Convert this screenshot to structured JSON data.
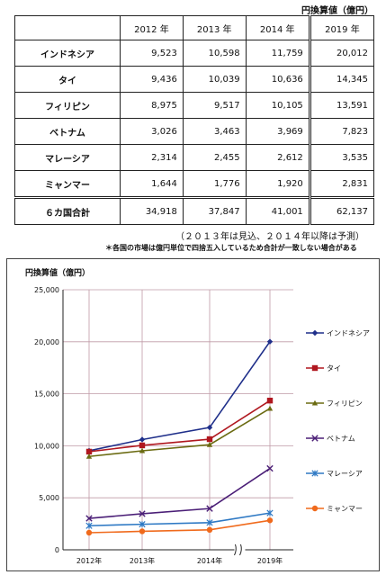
{
  "table": {
    "unit_label": "円換算値（億円）",
    "headers": [
      "",
      "2012 年",
      "2013 年",
      "2014 年",
      "2019 年"
    ],
    "rows": [
      {
        "country": "インドネシア",
        "values": [
          "9,523",
          "10,598",
          "11,759",
          "20,012"
        ]
      },
      {
        "country": "タイ",
        "values": [
          "9,436",
          "10,039",
          "10,636",
          "14,345"
        ]
      },
      {
        "country": "フィリピン",
        "values": [
          "8,975",
          "9,517",
          "10,105",
          "13,591"
        ]
      },
      {
        "country": "ベトナム",
        "values": [
          "3,026",
          "3,463",
          "3,969",
          "7,823"
        ]
      },
      {
        "country": "マレーシア",
        "values": [
          "2,314",
          "2,455",
          "2,612",
          "3,535"
        ]
      },
      {
        "country": "ミャンマー",
        "values": [
          "1,644",
          "1,776",
          "1,920",
          "2,831"
        ]
      }
    ],
    "total": {
      "country": "６カ国合計",
      "values": [
        "34,918",
        "37,847",
        "41,001",
        "62,137"
      ]
    }
  },
  "notes": {
    "forecast": "（２０１３年は見込、２０１４年以降は予測）",
    "rounding": "＊各国の市場は億円単位で四捨五入しているため合計が一致しない場合がある"
  },
  "chart_data": {
    "type": "line",
    "title": "円換算値（億円）",
    "xlabel": "",
    "ylabel": "",
    "categories": [
      "2012年",
      "2013年",
      "2014年",
      "2019年"
    ],
    "ylim": [
      0,
      25000
    ],
    "yticks": [
      0,
      5000,
      10000,
      15000,
      20000,
      25000
    ],
    "ytick_labels": [
      "0",
      "5,000",
      "10,000",
      "15,000",
      "20,000",
      "25,000"
    ],
    "grid": true,
    "legend_position": "right",
    "axis_break_between": [
      "2014年",
      "2019年"
    ],
    "series": [
      {
        "name": "インドネシア",
        "color": "#1f2f8a",
        "marker": "diamond",
        "values": [
          9523,
          10598,
          11759,
          20012
        ]
      },
      {
        "name": "タイ",
        "color": "#b0171f",
        "marker": "square",
        "values": [
          9436,
          10039,
          10636,
          14345
        ]
      },
      {
        "name": "フィリピン",
        "color": "#6b6b12",
        "marker": "triangle",
        "values": [
          8975,
          9517,
          10105,
          13591
        ]
      },
      {
        "name": "ベトナム",
        "color": "#4b1f77",
        "marker": "x",
        "values": [
          3026,
          3463,
          3969,
          7823
        ]
      },
      {
        "name": "マレーシア",
        "color": "#2e79c4",
        "marker": "star",
        "values": [
          2314,
          2455,
          2612,
          3535
        ]
      },
      {
        "name": "ミャンマー",
        "color": "#f06a1c",
        "marker": "circle",
        "values": [
          1644,
          1776,
          1920,
          2831
        ]
      }
    ]
  }
}
